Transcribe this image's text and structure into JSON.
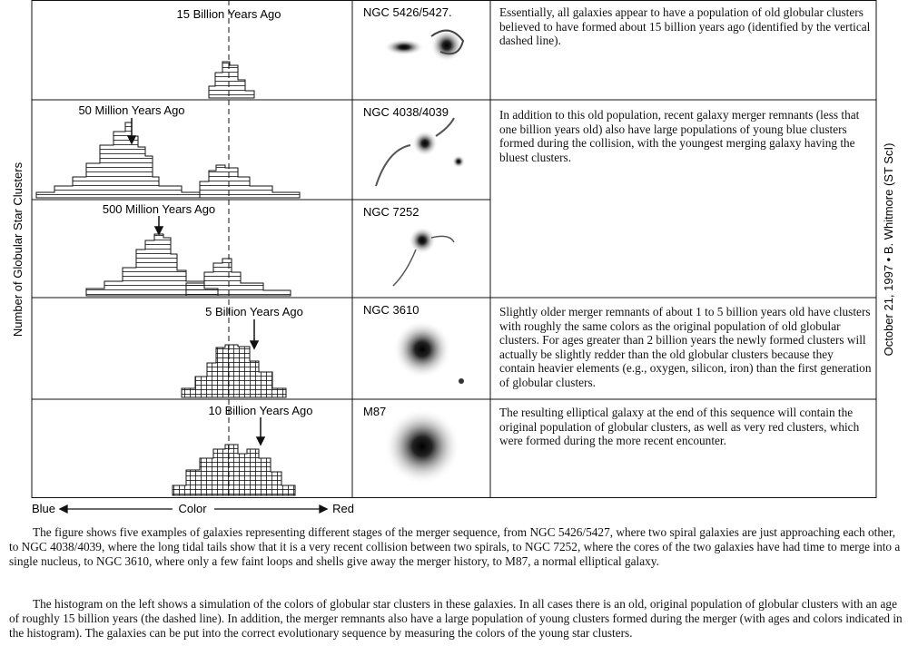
{
  "figure": {
    "y_axis_label": "Number of Globular Star Clusters",
    "x_axis": {
      "left": "Blue",
      "center": "Color",
      "right": "Red"
    },
    "credit": "October 21, 1997 • B. Whitmore (ST ScI)",
    "panels": [
      {
        "age_label": "15 Billion Years Ago",
        "galaxy": "NGC 5426/5427.",
        "description": "Essentially, all galaxies appear to have a population of old globular clusters believed to have formed about 15 billion years ago (identified by the vertical dashed line)."
      },
      {
        "age_label": "50 Million Years Ago",
        "galaxy": "NGC 4038/4039",
        "description": "In addition to this old population, recent galaxy merger remnants (less that one billion years old) also have large populations of young blue clusters formed during the collision, with the youngest merging galaxy having the bluest clusters."
      },
      {
        "age_label": "500 Million Years Ago",
        "galaxy": "NGC 7252"
      },
      {
        "age_label": "5 Billion Years Ago",
        "galaxy": "NGC 3610",
        "description": "Slightly older merger remnants of about 1 to 5 billion years old have clusters with roughly the same colors as the original population of old globular clusters. For ages greater than 2 billion years the newly formed clusters will actually be slightly redder than the old globular clusters because they contain heavier elements (e.g., oxygen, silicon, iron) than the first generation of globular clusters."
      },
      {
        "age_label": "10 Billion Years Ago",
        "galaxy": "M87",
        "description": "The resulting elliptical galaxy at the end of this sequence will contain the original population of globular clusters, as well as very red clusters, which were formed during the more recent encounter."
      }
    ]
  },
  "caption": {
    "paragraphs": [
      "The figure shows five examples of galaxies representing different stages of the merger sequence, from NGC 5426/5427, where two spiral galaxies are just approaching each other, to NGC 4038/4039, where the long tidal tails show that it is a very recent collision between two spirals, to NGC 7252, where the cores of the two galaxies have had time to merge into a single nucleus, to NGC 3610, where only a few faint loops and shells give away the merger history, to M87, a normal elliptical galaxy.",
      "The histogram on the left shows a simulation of the colors of globular star clusters in these galaxies. In all cases there is an old, original population of globular clusters with an age of roughly 15 billion years (the dashed line). In addition, the merger remnants also have a large population of young clusters formed during the merger (with ages and colors indicated in the histogram). The galaxies can be put into the correct evolutionary sequence by measuring the colors of the young star clusters."
    ]
  }
}
